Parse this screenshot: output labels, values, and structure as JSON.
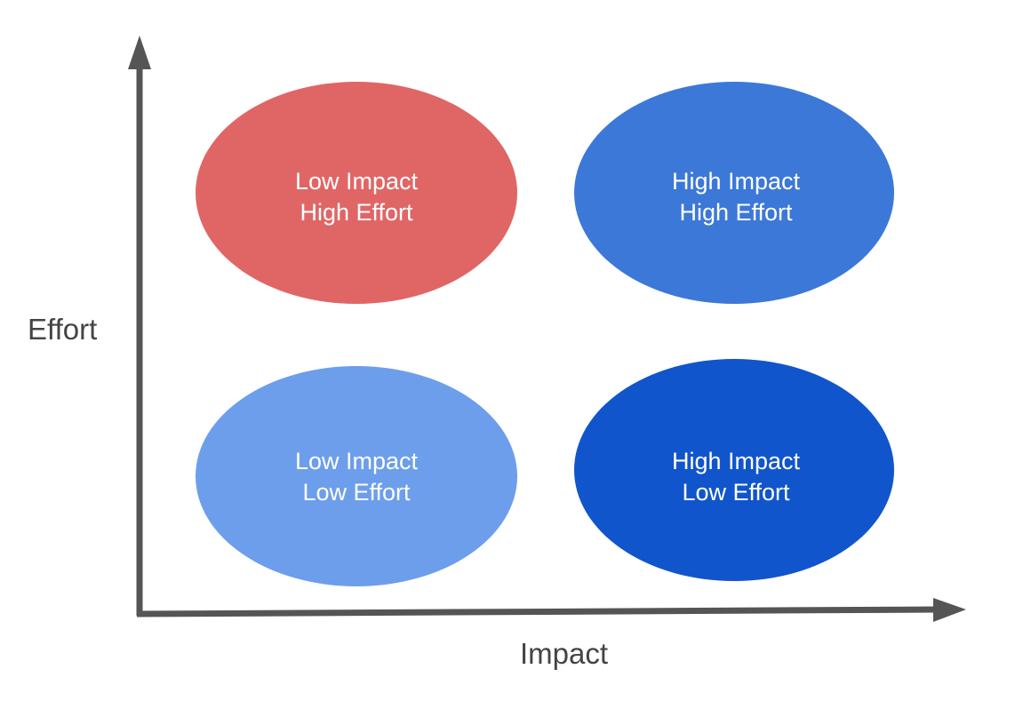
{
  "axes": {
    "y_label": "Effort",
    "x_label": "Impact"
  },
  "quadrants": {
    "low_impact_high_effort": {
      "line1": "Low Impact",
      "line2": "High Effort",
      "color": "#e06666"
    },
    "high_impact_high_effort": {
      "line1": "High Impact",
      "line2": "High Effort",
      "color": "#3c78d8"
    },
    "low_impact_low_effort": {
      "line1": "Low Impact",
      "line2": "Low Effort",
      "color": "#6d9eeb"
    },
    "high_impact_low_effort": {
      "line1": "High Impact",
      "line2": "Low Effort",
      "color": "#1155cc"
    }
  },
  "axis_color": "#555555"
}
